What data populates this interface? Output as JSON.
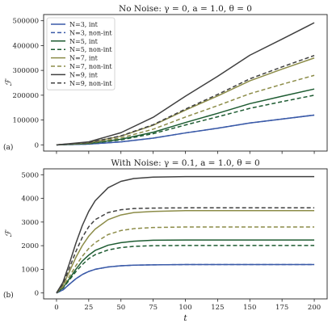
{
  "chart_data": [
    {
      "type": "line",
      "title": "No Noise: γ = 0, a = 1.0, θ = 0",
      "panel_label": "(a)",
      "xlabel": "",
      "ylabel": "ℱ",
      "xlim": [
        -10,
        210
      ],
      "ylim": [
        -25000,
        525000
      ],
      "xticks": [
        0,
        25,
        50,
        75,
        100,
        125,
        150,
        175,
        200
      ],
      "show_xtick_labels": false,
      "yticks": [
        0,
        100000,
        200000,
        300000,
        400000,
        500000
      ],
      "ytick_labels": [
        "0",
        "100000",
        "200000",
        "300000",
        "400000",
        "500000"
      ],
      "grid": false,
      "legend": {
        "placement": "top-left"
      },
      "x": [
        0,
        25,
        50,
        75,
        100,
        125,
        150,
        175,
        200
      ],
      "series": [
        {
          "name": "N=3, int",
          "color": "#3a5aa8",
          "dash": "solid",
          "values": [
            0,
            3000,
            12000,
            27000,
            48000,
            67000,
            88000,
            104000,
            120000
          ]
        },
        {
          "name": "N=3, non-int",
          "color": "#3a5aa8",
          "dash": "dashed",
          "values": [
            0,
            3000,
            12000,
            27000,
            48000,
            67000,
            88000,
            104000,
            120000
          ]
        },
        {
          "name": "N=5, int",
          "color": "#1e5c32",
          "dash": "solid",
          "values": [
            0,
            5600,
            22500,
            50600,
            90000,
            127000,
            166000,
            196000,
            225000
          ]
        },
        {
          "name": "N=5, non-int",
          "color": "#1e5c32",
          "dash": "dashed",
          "values": [
            0,
            5000,
            20000,
            45000,
            80000,
            113000,
            147000,
            174000,
            200000
          ]
        },
        {
          "name": "N=7, int",
          "color": "#8c8c48",
          "dash": "solid",
          "values": [
            0,
            8800,
            35000,
            79000,
            140000,
            197000,
            258000,
            305000,
            350000
          ]
        },
        {
          "name": "N=7, non-int",
          "color": "#8c8c48",
          "dash": "dashed",
          "values": [
            0,
            7000,
            28000,
            63000,
            112000,
            158000,
            206000,
            244000,
            280000
          ]
        },
        {
          "name": "N=9, int",
          "color": "#404040",
          "dash": "solid",
          "values": [
            0,
            12000,
            49000,
            111000,
            196000,
            276000,
            361000,
            426000,
            492000
          ]
        },
        {
          "name": "N=9, non-int",
          "color": "#404040",
          "dash": "dashed",
          "values": [
            0,
            9000,
            36000,
            81000,
            144000,
            203000,
            266000,
            314000,
            360000
          ]
        }
      ]
    },
    {
      "type": "line",
      "title": "With Noise: γ = 0.1, a = 1.0, θ = 0",
      "panel_label": "(b)",
      "xlabel": "t",
      "ylabel": "ℱ",
      "xlim": [
        -10,
        210
      ],
      "ylim": [
        -250,
        5250
      ],
      "xticks": [
        0,
        25,
        50,
        75,
        100,
        125,
        150,
        175,
        200
      ],
      "xtick_labels": [
        "0",
        "25",
        "50",
        "75",
        "100",
        "125",
        "150",
        "175",
        "200"
      ],
      "show_xtick_labels": true,
      "yticks": [
        0,
        1000,
        2000,
        3000,
        4000,
        5000
      ],
      "ytick_labels": [
        "0",
        "1000",
        "2000",
        "3000",
        "4000",
        "5000"
      ],
      "grid": false,
      "x": [
        0,
        5,
        10,
        15,
        20,
        25,
        30,
        40,
        50,
        60,
        75,
        100,
        125,
        150,
        175,
        200
      ],
      "series": [
        {
          "name": "N=3, int",
          "color": "#3a5aa8",
          "dash": "solid",
          "values": [
            0,
            130,
            370,
            600,
            780,
            910,
            1000,
            1100,
            1150,
            1175,
            1190,
            1200,
            1200,
            1200,
            1200,
            1200
          ]
        },
        {
          "name": "N=3, non-int",
          "color": "#3a5aa8",
          "dash": "dashed",
          "values": [
            0,
            130,
            370,
            600,
            780,
            910,
            1000,
            1100,
            1150,
            1175,
            1190,
            1200,
            1200,
            1200,
            1200,
            1200
          ]
        },
        {
          "name": "N=5, int",
          "color": "#1e5c32",
          "dash": "solid",
          "values": [
            0,
            220,
            600,
            1000,
            1350,
            1600,
            1800,
            2020,
            2130,
            2190,
            2230,
            2240,
            2240,
            2240,
            2240,
            2240
          ]
        },
        {
          "name": "N=5, non-int",
          "color": "#1e5c32",
          "dash": "dashed",
          "values": [
            0,
            200,
            550,
            900,
            1200,
            1450,
            1620,
            1820,
            1920,
            1970,
            2000,
            2010,
            2010,
            2010,
            2010,
            2010
          ]
        },
        {
          "name": "N=7, int",
          "color": "#8c8c48",
          "dash": "solid",
          "values": [
            0,
            330,
            900,
            1500,
            2000,
            2400,
            2700,
            3100,
            3300,
            3400,
            3450,
            3480,
            3480,
            3480,
            3480,
            3480
          ]
        },
        {
          "name": "N=7, non-int",
          "color": "#8c8c48",
          "dash": "dashed",
          "values": [
            0,
            260,
            700,
            1150,
            1550,
            1880,
            2130,
            2470,
            2640,
            2720,
            2770,
            2790,
            2790,
            2790,
            2790,
            2790
          ]
        },
        {
          "name": "N=9, int",
          "color": "#404040",
          "dash": "solid",
          "values": [
            0,
            450,
            1250,
            2100,
            2850,
            3450,
            3900,
            4450,
            4720,
            4840,
            4900,
            4920,
            4920,
            4920,
            4920,
            4920
          ]
        },
        {
          "name": "N=9, non-int",
          "color": "#404040",
          "dash": "dashed",
          "values": [
            0,
            380,
            1050,
            1750,
            2350,
            2800,
            3100,
            3400,
            3520,
            3570,
            3590,
            3600,
            3600,
            3600,
            3600,
            3600
          ]
        }
      ]
    }
  ]
}
